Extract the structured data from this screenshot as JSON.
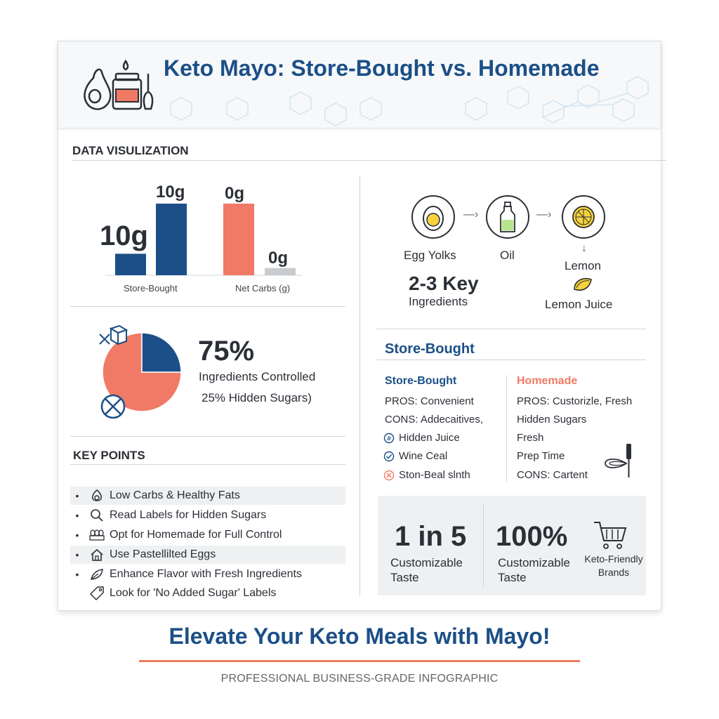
{
  "header": {
    "title": "Keto Mayo: Store-Bought vs. Homemade"
  },
  "data_viz": {
    "section_title": "DATA VISULIZATION",
    "bar_left_value_big": "10g",
    "bar_left_value_top": "10g",
    "bar_right_value_top": "0g",
    "bar_right_value_small": "0g",
    "label_store_bought": "Store-Bought",
    "label_net_carbs": "Net Carbs (g)"
  },
  "pie": {
    "value": "75%",
    "line1": "Ingredients Controlled",
    "line2": "25% Hidden Sugars)"
  },
  "key_points": {
    "section_title": "KEY POINTS",
    "items": [
      {
        "text": "Low Carbs & Healthy Fats",
        "icon": "avocado-icon"
      },
      {
        "text": "Read Labels for Hidden Sugars",
        "icon": "magnifier-icon"
      },
      {
        "text": "Opt for Homemade for Full Control",
        "icon": "eggs-carton-icon"
      },
      {
        "text": "Use Pastellilted Eggs",
        "icon": "home-icon"
      },
      {
        "text": "Enhance Flavor with Fresh Ingredients",
        "icon": "leaf-icon"
      },
      {
        "text": "Look for 'No Added Sugar' Labels",
        "icon": "tag-icon"
      }
    ]
  },
  "flow": {
    "egg_label": "Egg Yolks",
    "oil_label": "Oil",
    "lemon_label": "Lemon",
    "lemon_juice_label": "Lemon Juice",
    "key_big": "2-3 Key",
    "key_sub": "Ingredients"
  },
  "comparison": {
    "title": "Store-Bought",
    "left_head": "Store-Bought",
    "right_head": "Homemade",
    "left_lines": [
      "PROS: Convenient",
      "CONS: Addecaitives,",
      "Hidden Juice",
      "Wine Ceal",
      "Ston-Beal slnth"
    ],
    "right_lines": [
      "PROS: Custorizle, Fresh",
      "Hidden Sugars",
      "Fresh",
      "Prep Time",
      "CONS: Cartent"
    ]
  },
  "stats": {
    "stat1_big": "1 in 5",
    "stat1_line1": "Customizable",
    "stat1_line2": "Taste",
    "stat2_big": "100%",
    "stat2_line1": "Customizable",
    "stat2_line2": "Taste",
    "brands_line1": "Keto-Friendly",
    "brands_line2": "Brands"
  },
  "footer": {
    "title": "Elevate Your Keto Meals with Mayo!",
    "subtitle": "PROFESSIONAL BUSINESS-GRADE INFOGRAPHIC"
  },
  "colors": {
    "navy": "#1c4f87",
    "coral": "#f07a65",
    "gray_bar": "#c8cbcf"
  },
  "chart_data": [
    {
      "type": "bar",
      "categories": [
        "Store-Bought",
        "Net Carbs (g)"
      ],
      "series": [
        {
          "values": [
            3,
            0
          ]
        },
        {
          "values": [
            10,
            10
          ]
        },
        {
          "values": [
            0,
            1
          ]
        }
      ]
    },
    {
      "type": "pie",
      "labels": [
        "Ingredients Controlled",
        "Hidden Sugars"
      ],
      "values": [
        75,
        25
      ]
    }
  ]
}
